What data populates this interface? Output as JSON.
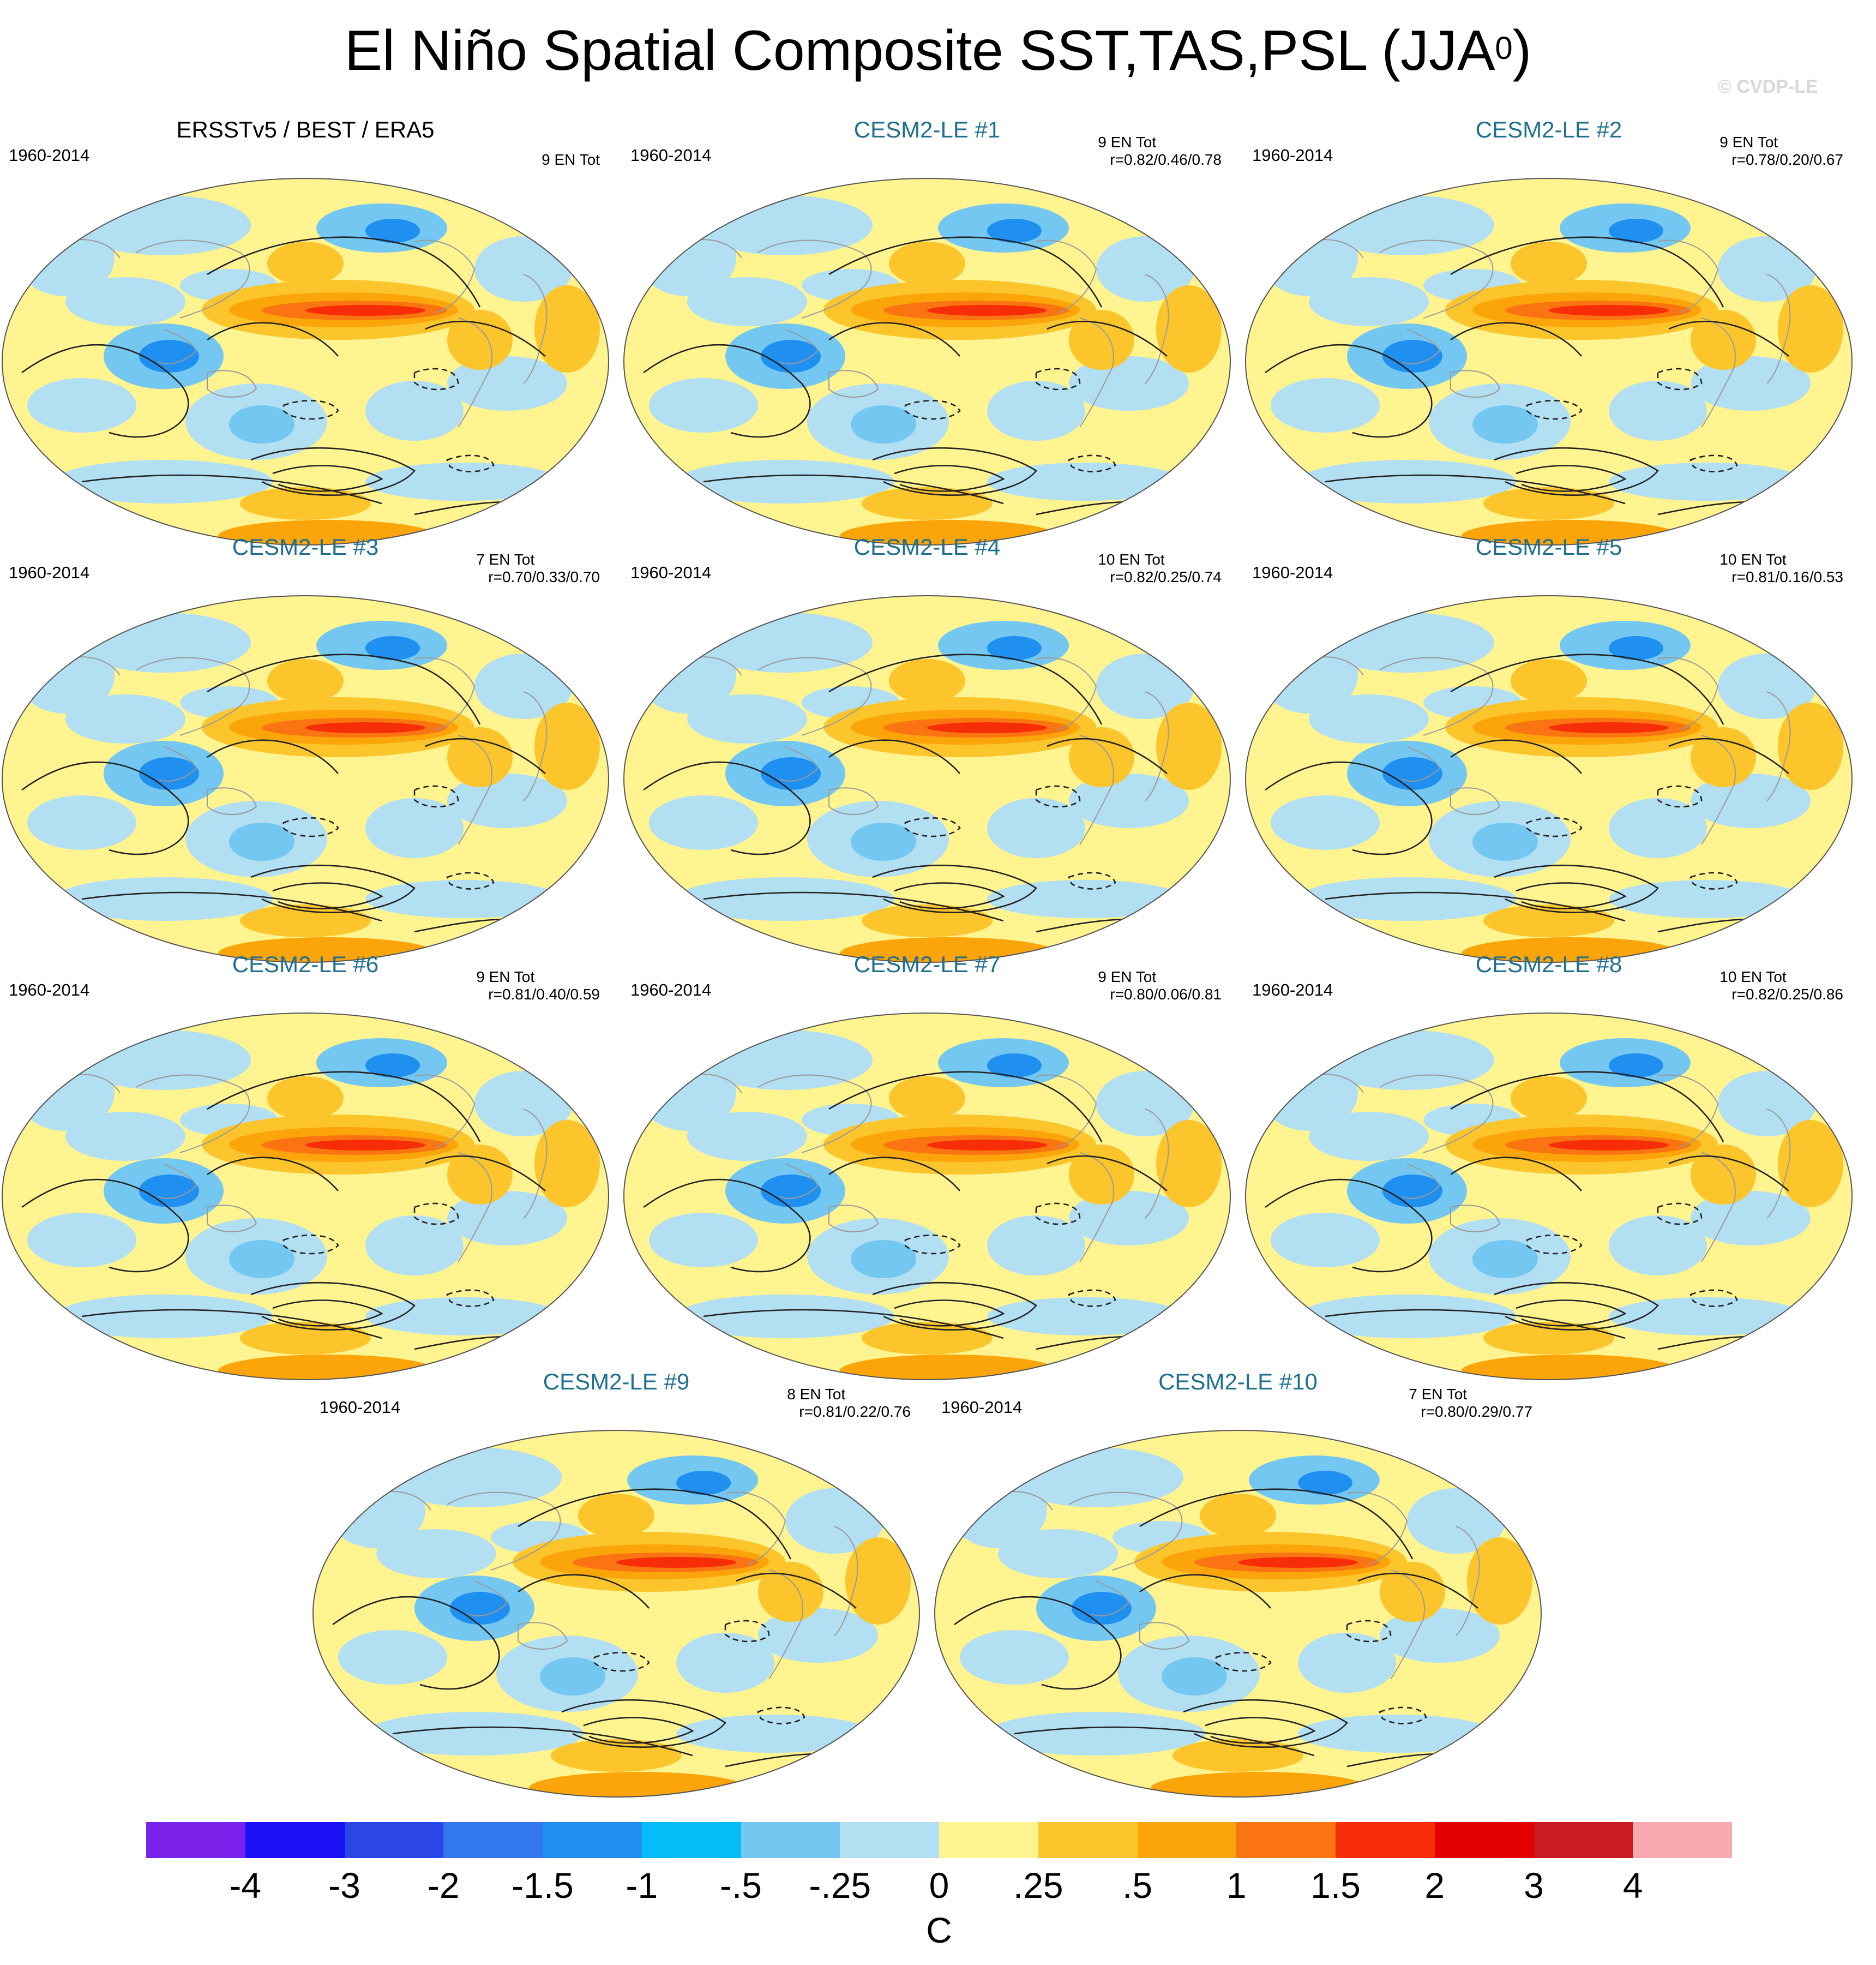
{
  "figure": {
    "title_main": "El Niño Spatial Composite SST,TAS,PSL (JJA",
    "title_sup": "0",
    "title_end": ")",
    "watermark": "© CVDP-LE"
  },
  "panels": [
    {
      "title": "ERSSTv5 / BEST / ERA5",
      "period": "1960-2014",
      "events": "9 EN Tot",
      "corr": ""
    },
    {
      "title": "CESM2-LE #1",
      "period": "1960-2014",
      "events": "9 EN Tot",
      "corr": "r=0.82/0.46/0.78"
    },
    {
      "title": "CESM2-LE #2",
      "period": "1960-2014",
      "events": "9 EN Tot",
      "corr": "r=0.78/0.20/0.67"
    },
    {
      "title": "CESM2-LE #3",
      "period": "1960-2014",
      "events": "7 EN Tot",
      "corr": "r=0.70/0.33/0.70"
    },
    {
      "title": "CESM2-LE #4",
      "period": "1960-2014",
      "events": "10 EN Tot",
      "corr": "r=0.82/0.25/0.74"
    },
    {
      "title": "CESM2-LE #5",
      "period": "1960-2014",
      "events": "10 EN Tot",
      "corr": "r=0.81/0.16/0.53"
    },
    {
      "title": "CESM2-LE #6",
      "period": "1960-2014",
      "events": "9 EN Tot",
      "corr": "r=0.81/0.40/0.59"
    },
    {
      "title": "CESM2-LE #7",
      "period": "1960-2014",
      "events": "9 EN Tot",
      "corr": "r=0.80/0.06/0.81"
    },
    {
      "title": "CESM2-LE #8",
      "period": "1960-2014",
      "events": "10 EN Tot",
      "corr": "r=0.82/0.25/0.86"
    },
    {
      "title": "CESM2-LE #9",
      "period": "1960-2014",
      "events": "8 EN Tot",
      "corr": "r=0.81/0.22/0.76"
    },
    {
      "title": "CESM2-LE #10",
      "period": "1960-2014",
      "events": "7 EN Tot",
      "corr": "r=0.80/0.29/0.77"
    }
  ],
  "legend": {
    "unit": "C",
    "levels": [
      "-4",
      "-3",
      "-2",
      "-1.5",
      "-1",
      "-.5",
      "-.25",
      "0",
      ".25",
      ".5",
      "1",
      "1.5",
      "2",
      "3",
      "4"
    ],
    "colors": [
      "#7b22ea",
      "#1a10f5",
      "#2a46e6",
      "#3277ee",
      "#1f8ff0",
      "#05bbf8",
      "#74c7f1",
      "#b3dff3",
      "#fff490",
      "#fdc52c",
      "#fca50a",
      "#fa7512",
      "#f72d07",
      "#e20000",
      "#ca1b20",
      "#f9aab0"
    ]
  }
}
